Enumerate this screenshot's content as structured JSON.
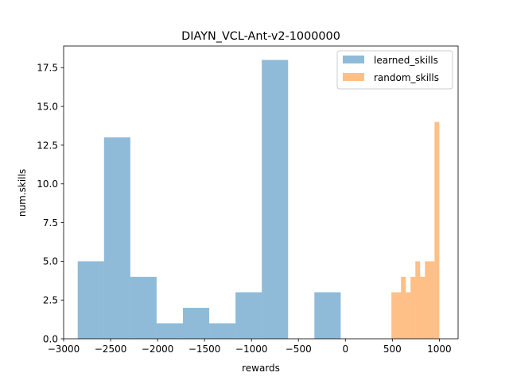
{
  "chart_data": {
    "type": "bar",
    "title": "DIAYN_VCL-Ant-v2-1000000",
    "xlabel": "rewards",
    "ylabel": "num.skills",
    "xlim": [
      -3000,
      1200
    ],
    "ylim": [
      0,
      18.9
    ],
    "xticks": [
      -3000,
      -2500,
      -2000,
      -1500,
      -1000,
      -500,
      0,
      500,
      1000
    ],
    "xtick_labels": [
      "−3000",
      "−2500",
      "−2000",
      "−1500",
      "−1000",
      "−500",
      "0",
      "500",
      "1000"
    ],
    "yticks": [
      0,
      2.5,
      5,
      7.5,
      10,
      12.5,
      15,
      17.5
    ],
    "ytick_labels": [
      "0.0",
      "2.5",
      "5.0",
      "7.5",
      "10.0",
      "12.5",
      "15.0",
      "17.5"
    ],
    "grid": false,
    "legend_position": "top-right",
    "series": [
      {
        "name": "learned_skills",
        "color": "#1f77b4",
        "alpha": 0.5,
        "bin_edges": [
          -2850,
          -2570,
          -2290,
          -2010,
          -1730,
          -1450,
          -1170,
          -890,
          -610,
          -330,
          -50
        ],
        "values": [
          5,
          13,
          4,
          1,
          2,
          1,
          3,
          18,
          0,
          3
        ]
      },
      {
        "name": "random_skills",
        "color": "#ff7f0e",
        "alpha": 0.5,
        "bin_edges": [
          490,
          541,
          592,
          643,
          694,
          745,
          796,
          847,
          898,
          949,
          1000
        ],
        "values": [
          3,
          3,
          4,
          3,
          4,
          5,
          4,
          5,
          5,
          14
        ]
      }
    ]
  }
}
